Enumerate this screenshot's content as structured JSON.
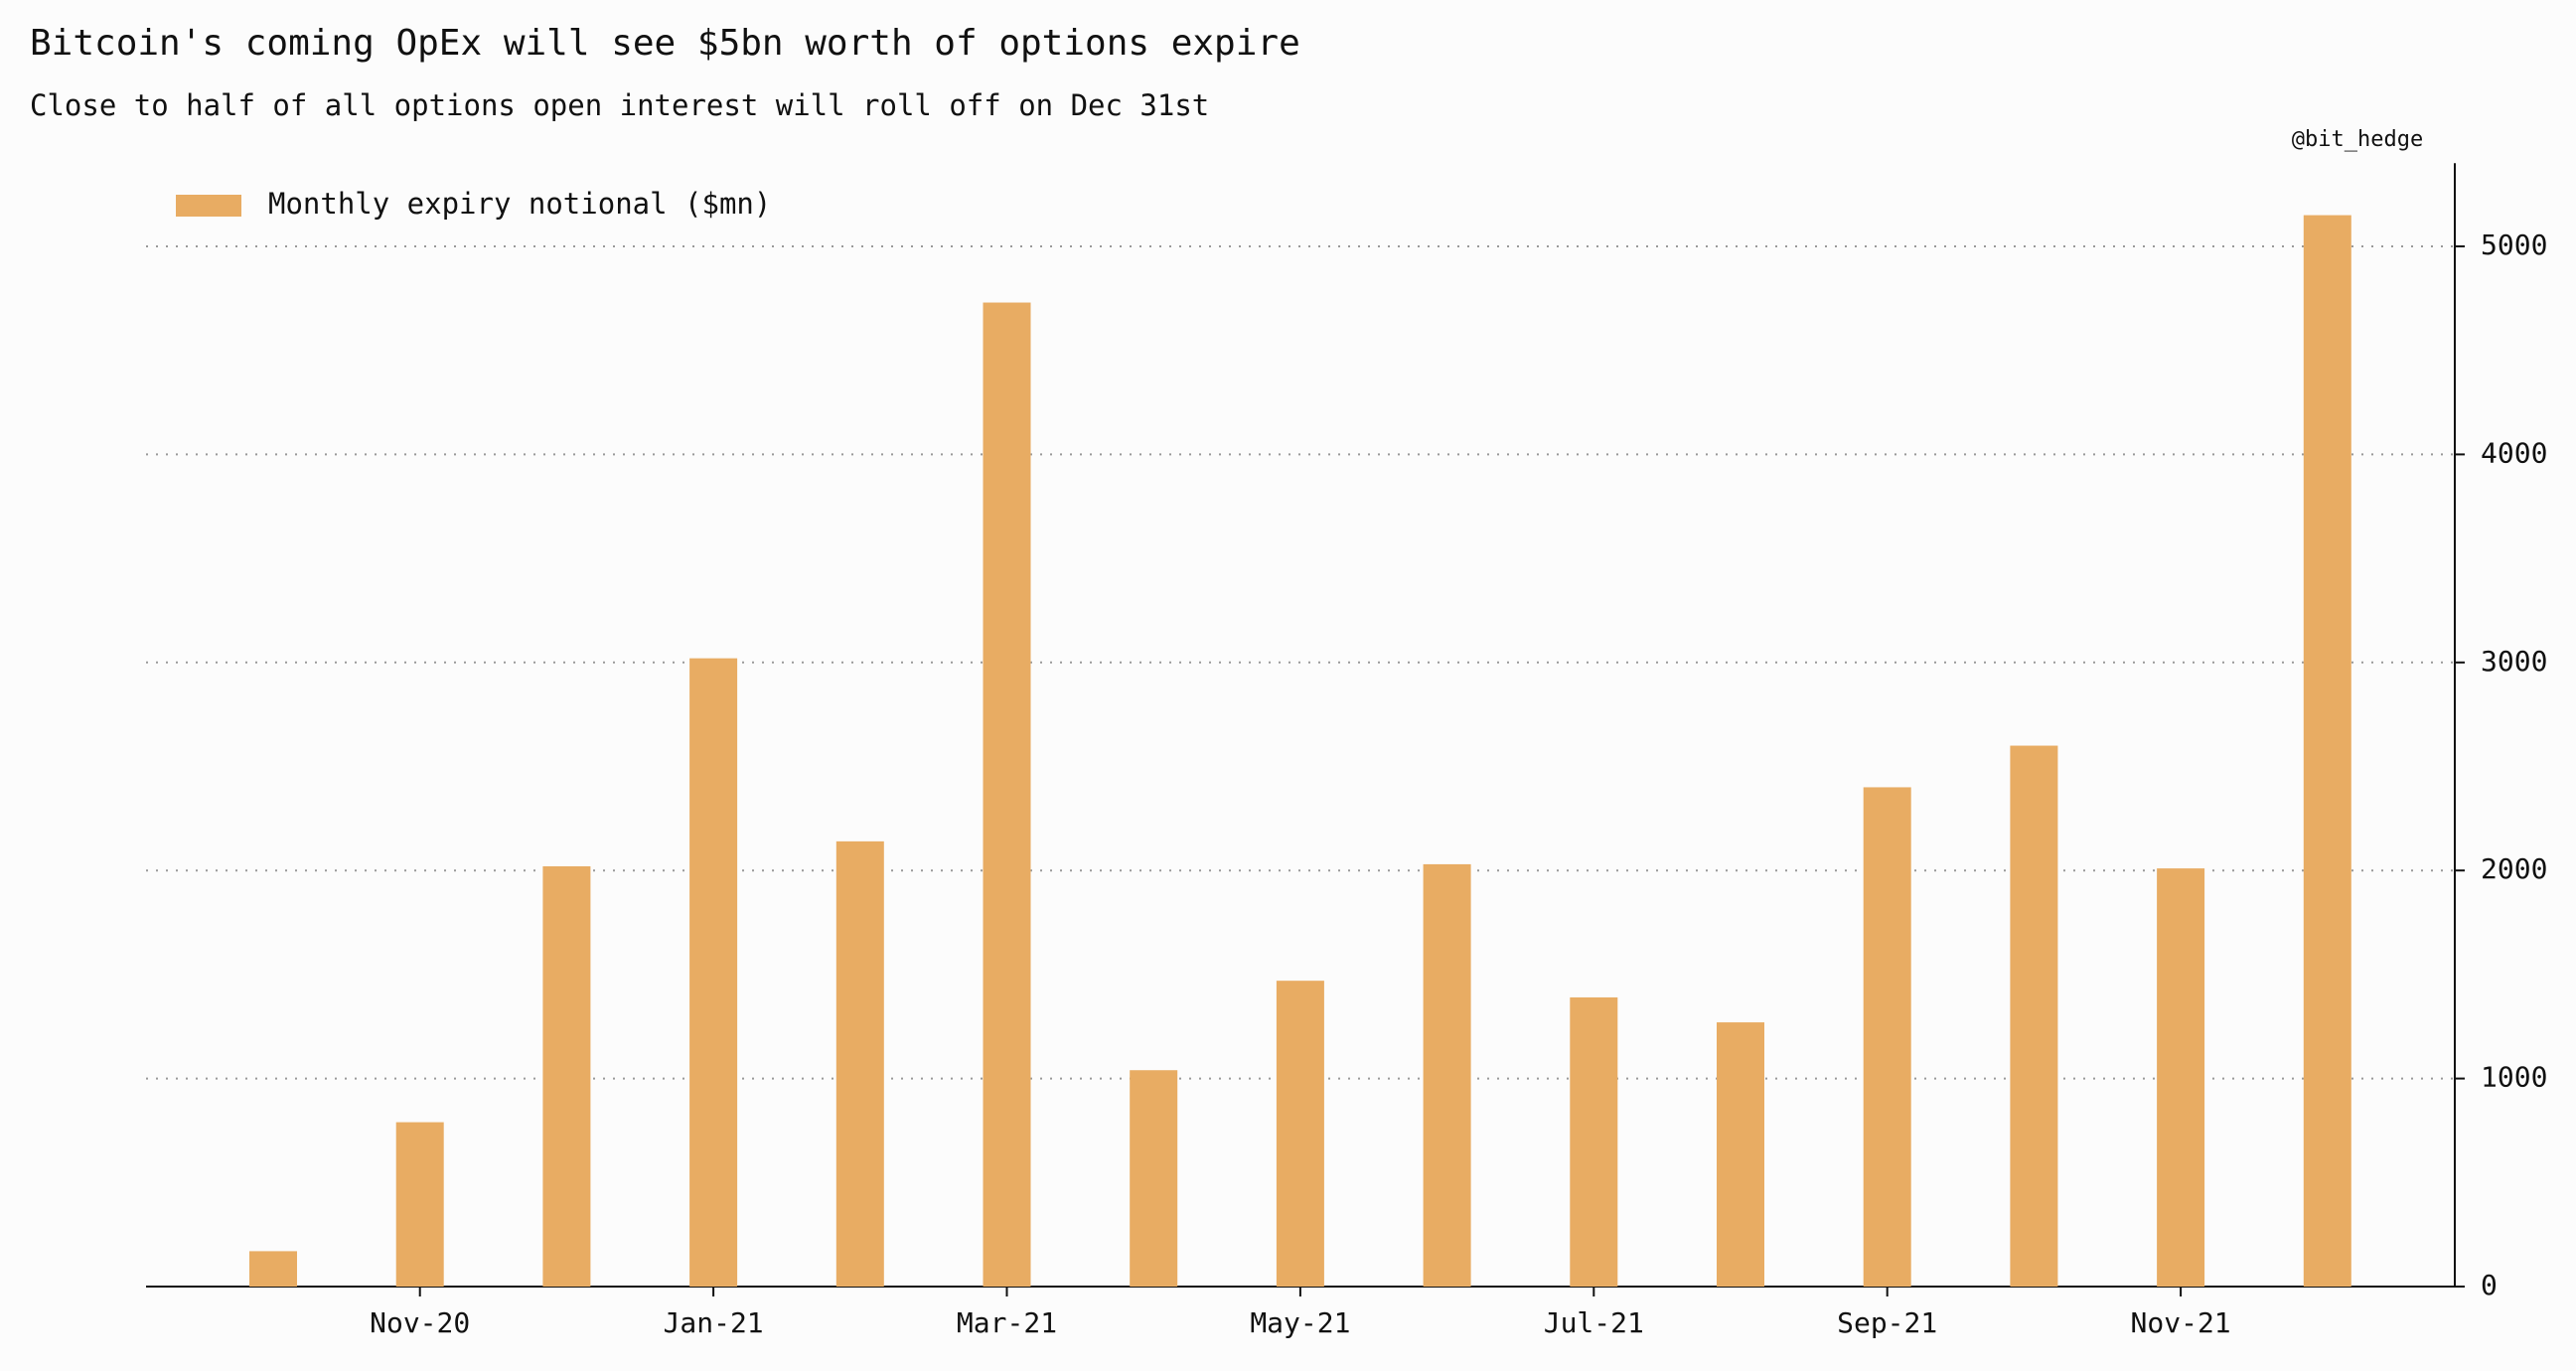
{
  "chart_data": {
    "type": "bar",
    "title": "Bitcoin's coming OpEx will see $5bn worth of options expire",
    "subtitle": "Close to half of all options open interest will roll off on Dec 31st",
    "credit": "@bit_hedge",
    "categories": [
      null,
      "Nov-20",
      null,
      "Jan-21",
      null,
      "Mar-21",
      null,
      "May-21",
      null,
      "Jul-21",
      null,
      "Sep-21",
      null,
      "Nov-21",
      null
    ],
    "series": [
      {
        "name": "Monthly expiry notional ($mn)",
        "color": "#e8ac63",
        "values": [
          170,
          790,
          2020,
          3020,
          2140,
          4730,
          1040,
          1470,
          2030,
          1390,
          1270,
          2400,
          2600,
          2010,
          5150
        ]
      }
    ],
    "ylim": [
      0,
      5400
    ],
    "yticks": [
      0,
      1000,
      2000,
      3000,
      4000,
      5000
    ],
    "grid": true,
    "legend": "upper left"
  }
}
